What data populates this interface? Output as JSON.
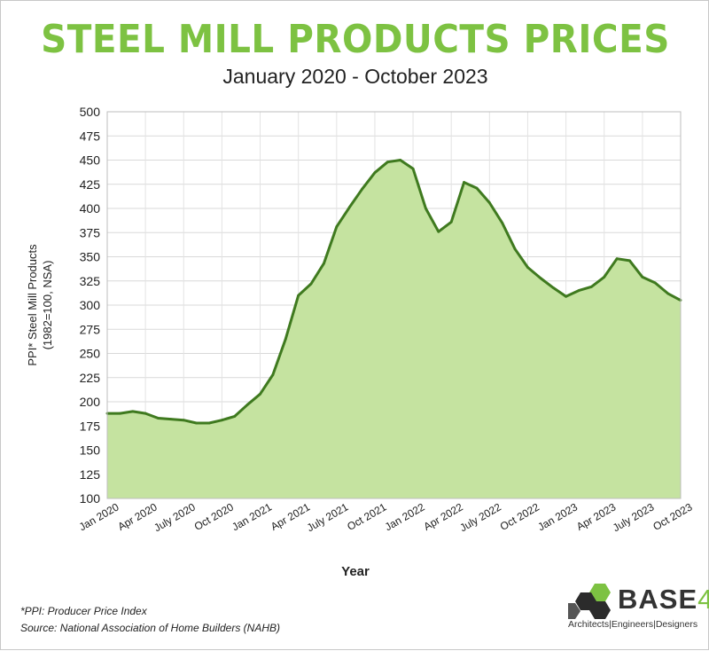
{
  "header": {
    "title": "STEEL MILL PRODUCTS PRICES",
    "subtitle": "January 2020 - October 2023"
  },
  "footnotes": {
    "ppi": "*PPI: Producer Price Index",
    "source": "Source: National Association of Home Builders (NAHB)"
  },
  "logo": {
    "name": "BASE",
    "number": "4",
    "tagline": "Architects|Engineers|Designers",
    "colors": [
      "#7dc242",
      "#333333"
    ]
  },
  "chart_data": {
    "type": "area",
    "title": "STEEL MILL PRODUCTS PRICES",
    "subtitle": "January 2020 - October 2023",
    "xlabel": "Year",
    "ylabel": "PPI* Steel Mill Products",
    "ylabel2": "(1982=100, NSA)",
    "ylim": [
      100,
      500
    ],
    "yticks": [
      100,
      125,
      150,
      175,
      200,
      225,
      250,
      275,
      300,
      325,
      350,
      375,
      400,
      425,
      450,
      475,
      500
    ],
    "xtick_labels": [
      "Jan 2020",
      "Apr 2020",
      "July 2020",
      "Oct 2020",
      "Jan 2021",
      "Apr 2021",
      "July 2021",
      "Oct 2021",
      "Jan 2022",
      "Apr 2022",
      "July 2022",
      "Oct 2022",
      "Jan 2023",
      "Apr 2023",
      "July 2023",
      "Oct 2023"
    ],
    "grid": true,
    "line_color": "#3f7a1f",
    "fill_color": "#c5e3a0",
    "series": [
      {
        "x": [
          "Jan 2020",
          "Feb 2020",
          "Mar 2020",
          "Apr 2020",
          "May 2020",
          "Jun 2020",
          "Jul 2020",
          "Aug 2020",
          "Sep 2020",
          "Oct 2020",
          "Nov 2020",
          "Dec 2020",
          "Jan 2021",
          "Feb 2021",
          "Mar 2021",
          "Apr 2021",
          "May 2021",
          "Jun 2021",
          "Jul 2021",
          "Aug 2021",
          "Sep 2021",
          "Oct 2021",
          "Nov 2021",
          "Dec 2021",
          "Jan 2022",
          "Feb 2022",
          "Mar 2022",
          "Apr 2022",
          "May 2022",
          "Jun 2022",
          "Jul 2022",
          "Aug 2022",
          "Sep 2022",
          "Oct 2022",
          "Nov 2022",
          "Dec 2022",
          "Jan 2023",
          "Feb 2023",
          "Mar 2023",
          "Apr 2023",
          "May 2023",
          "Jun 2023",
          "Jul 2023",
          "Aug 2023",
          "Sep 2023",
          "Oct 2023"
        ],
        "values": [
          188,
          188,
          190,
          188,
          183,
          182,
          181,
          178,
          178,
          181,
          185,
          197,
          208,
          228,
          265,
          310,
          322,
          343,
          381,
          401,
          420,
          437,
          448,
          450,
          441,
          400,
          376,
          386,
          427,
          421,
          406,
          385,
          358,
          339,
          328,
          318,
          309,
          315,
          319,
          329,
          348,
          346,
          329,
          323,
          312,
          305
        ]
      }
    ]
  }
}
